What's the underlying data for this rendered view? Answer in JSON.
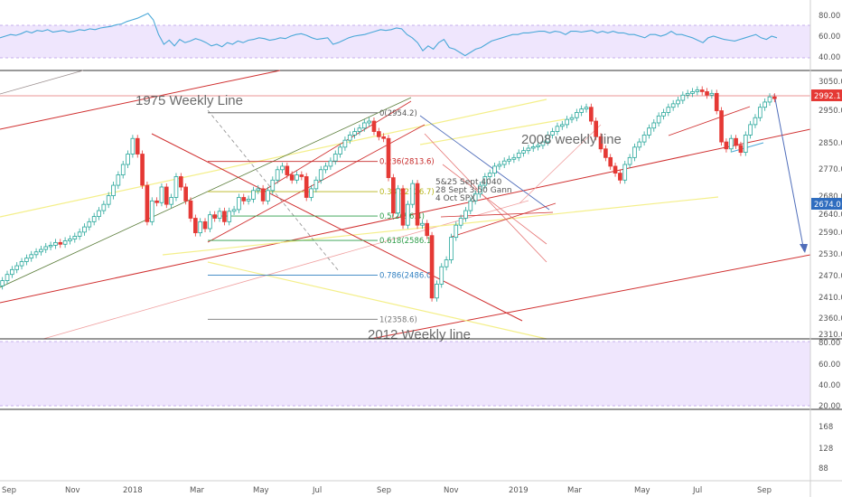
{
  "chart_data": {
    "type": "candlestick",
    "colors": {
      "up": "#26a69a",
      "down": "#e53935",
      "rsi_line": "#4aa8d8",
      "rsi_band": "#e8dcfb"
    },
    "x_axis": {
      "labels": [
        "Sep",
        "Nov",
        "2018",
        "Mar",
        "May",
        "Jul",
        "Sep",
        "Nov",
        "2019",
        "Mar",
        "May",
        "Jul",
        "Sep"
      ]
    },
    "price_axis": {
      "labels": [
        "3050.0",
        "2950.0",
        "2850.0",
        "2770.0",
        "2680.0",
        "2640.0",
        "2590.0",
        "2530.0",
        "2470.0",
        "2410.0",
        "2360.0",
        "2310.0"
      ],
      "range": [
        2310,
        3050
      ]
    },
    "rsi_top_axis": {
      "labels": [
        "80.00",
        "60.00",
        "40.00"
      ],
      "range": [
        20,
        100
      ],
      "band": [
        30,
        70
      ]
    },
    "rsi_bottom_axis": {
      "labels": [
        "80.00",
        "60.00",
        "40.00",
        "20.00"
      ]
    },
    "volume_axis": {
      "labels": [
        "168",
        "128",
        "88"
      ]
    },
    "current_price": "2992.1",
    "marker_price": "2674.0",
    "candles": [
      [
        2455,
        2470
      ],
      [
        2470,
        2488
      ],
      [
        2488,
        2502
      ],
      [
        2502,
        2513
      ],
      [
        2513,
        2525
      ],
      [
        2525,
        2535
      ],
      [
        2535,
        2545
      ],
      [
        2545,
        2553
      ],
      [
        2553,
        2560
      ],
      [
        2560,
        2568
      ],
      [
        2568,
        2572
      ],
      [
        2572,
        2580
      ],
      [
        2580,
        2575
      ],
      [
        2575,
        2585
      ],
      [
        2585,
        2590
      ],
      [
        2590,
        2598
      ],
      [
        2598,
        2610
      ],
      [
        2610,
        2625
      ],
      [
        2625,
        2640
      ],
      [
        2640,
        2655
      ],
      [
        2655,
        2672
      ],
      [
        2672,
        2690
      ],
      [
        2690,
        2715
      ],
      [
        2715,
        2745
      ],
      [
        2745,
        2775
      ],
      [
        2775,
        2805
      ],
      [
        2805,
        2835
      ],
      [
        2835,
        2880
      ],
      [
        2880,
        2835
      ],
      [
        2835,
        2745
      ],
      [
        2745,
        2640
      ],
      [
        2640,
        2700
      ],
      [
        2700,
        2695
      ],
      [
        2695,
        2740
      ],
      [
        2740,
        2690
      ],
      [
        2690,
        2710
      ],
      [
        2710,
        2770
      ],
      [
        2770,
        2740
      ],
      [
        2740,
        2700
      ],
      [
        2700,
        2650
      ],
      [
        2650,
        2608
      ],
      [
        2608,
        2640
      ],
      [
        2640,
        2620
      ],
      [
        2620,
        2660
      ],
      [
        2660,
        2650
      ],
      [
        2650,
        2670
      ],
      [
        2670,
        2640
      ],
      [
        2640,
        2670
      ],
      [
        2670,
        2675
      ],
      [
        2675,
        2710
      ],
      [
        2710,
        2700
      ],
      [
        2700,
        2705
      ],
      [
        2705,
        2730
      ],
      [
        2730,
        2735
      ],
      [
        2735,
        2700
      ],
      [
        2700,
        2730
      ],
      [
        2730,
        2760
      ],
      [
        2760,
        2790
      ],
      [
        2790,
        2800
      ],
      [
        2800,
        2775
      ],
      [
        2775,
        2760
      ],
      [
        2760,
        2775
      ],
      [
        2775,
        2770
      ],
      [
        2770,
        2710
      ],
      [
        2710,
        2735
      ],
      [
        2735,
        2760
      ],
      [
        2760,
        2790
      ],
      [
        2790,
        2800
      ],
      [
        2800,
        2815
      ],
      [
        2815,
        2835
      ],
      [
        2835,
        2855
      ],
      [
        2855,
        2875
      ],
      [
        2875,
        2890
      ],
      [
        2890,
        2900
      ],
      [
        2900,
        2910
      ],
      [
        2910,
        2925
      ],
      [
        2925,
        2930
      ],
      [
        2930,
        2900
      ],
      [
        2900,
        2885
      ],
      [
        2885,
        2880
      ],
      [
        2880,
        2767
      ],
      [
        2767,
        2665
      ],
      [
        2665,
        2735
      ],
      [
        2735,
        2630
      ],
      [
        2630,
        2690
      ],
      [
        2690,
        2750
      ],
      [
        2750,
        2630
      ],
      [
        2630,
        2635
      ],
      [
        2635,
        2600
      ],
      [
        2600,
        2420
      ],
      [
        2420,
        2460
      ],
      [
        2460,
        2510
      ],
      [
        2510,
        2530
      ],
      [
        2530,
        2595
      ],
      [
        2595,
        2630
      ],
      [
        2630,
        2650
      ],
      [
        2650,
        2672
      ],
      [
        2672,
        2700
      ],
      [
        2700,
        2720
      ],
      [
        2720,
        2745
      ],
      [
        2745,
        2770
      ],
      [
        2770,
        2780
      ],
      [
        2780,
        2800
      ],
      [
        2800,
        2805
      ],
      [
        2805,
        2815
      ],
      [
        2815,
        2820
      ],
      [
        2820,
        2825
      ],
      [
        2825,
        2838
      ],
      [
        2838,
        2845
      ],
      [
        2845,
        2852
      ],
      [
        2852,
        2856
      ],
      [
        2856,
        2860
      ],
      [
        2860,
        2870
      ],
      [
        2870,
        2890
      ],
      [
        2890,
        2900
      ],
      [
        2900,
        2915
      ],
      [
        2915,
        2920
      ],
      [
        2920,
        2935
      ],
      [
        2935,
        2940
      ],
      [
        2940,
        2955
      ],
      [
        2955,
        2965
      ],
      [
        2965,
        2970
      ],
      [
        2970,
        2930
      ],
      [
        2930,
        2885
      ],
      [
        2885,
        2850
      ],
      [
        2850,
        2825
      ],
      [
        2825,
        2800
      ],
      [
        2800,
        2780
      ],
      [
        2780,
        2760
      ],
      [
        2760,
        2805
      ],
      [
        2805,
        2825
      ],
      [
        2825,
        2855
      ],
      [
        2855,
        2870
      ],
      [
        2870,
        2890
      ],
      [
        2890,
        2910
      ],
      [
        2910,
        2925
      ],
      [
        2925,
        2945
      ],
      [
        2945,
        2955
      ],
      [
        2955,
        2970
      ],
      [
        2970,
        2980
      ],
      [
        2980,
        2990
      ],
      [
        2990,
        3005
      ],
      [
        3005,
        3010
      ],
      [
        3010,
        3015
      ],
      [
        3015,
        3020
      ],
      [
        3020,
        3015
      ],
      [
        3015,
        3005
      ],
      [
        3005,
        3010
      ],
      [
        3010,
        2960
      ],
      [
        2960,
        2870
      ],
      [
        2870,
        2850
      ],
      [
        2850,
        2880
      ],
      [
        2880,
        2860
      ],
      [
        2860,
        2840
      ],
      [
        2840,
        2890
      ],
      [
        2890,
        2920
      ],
      [
        2920,
        2940
      ],
      [
        2940,
        2970
      ],
      [
        2970,
        2985
      ],
      [
        2985,
        3000
      ],
      [
        3000,
        2995
      ]
    ],
    "rsi_top_values": [
      58,
      60,
      62,
      61,
      63,
      66,
      64,
      67,
      66,
      68,
      65,
      66,
      67,
      65,
      66,
      68,
      67,
      69,
      68,
      70,
      71,
      72,
      74,
      75,
      78,
      80,
      82,
      85,
      88,
      80,
      62,
      50,
      55,
      48,
      56,
      52,
      54,
      57,
      55,
      52,
      48,
      50,
      47,
      52,
      50,
      54,
      52,
      55,
      56,
      58,
      57,
      55,
      56,
      58,
      57,
      60,
      62,
      63,
      61,
      58,
      56,
      57,
      58,
      50,
      52,
      55,
      58,
      60,
      61,
      62,
      64,
      66,
      68,
      67,
      68,
      70,
      69,
      62,
      58,
      52,
      42,
      48,
      44,
      52,
      56,
      46,
      44,
      40,
      36,
      40,
      44,
      46,
      50,
      54,
      56,
      58,
      60,
      62,
      62,
      64,
      64,
      65,
      66,
      66,
      64,
      66,
      65,
      62,
      66,
      66,
      65,
      66,
      67,
      64,
      66,
      64,
      66,
      64,
      64,
      62,
      62,
      60,
      58,
      62,
      62,
      60,
      62,
      66,
      62,
      62,
      60,
      58,
      55,
      52,
      58,
      60,
      58,
      56,
      55,
      54,
      56,
      58,
      60,
      62,
      58,
      56,
      60,
      58
    ],
    "annotations": {
      "line_1975": "1975 Weekly Line",
      "line_2008": "2008 weekly line",
      "line_2012": "2012 Weekly line",
      "notes": [
        "5&25 Sept 4040",
        "28 Sept 3:50 Gann",
        "4 Oct SPX"
      ]
    },
    "fib_levels": [
      {
        "label": "0(2954.2)",
        "ratio": 0,
        "value": 2954.2,
        "color": "#555555"
      },
      {
        "label": "0.236(2813.6)",
        "ratio": 0.236,
        "value": 2813.6,
        "color": "#c62828"
      },
      {
        "label": "0.382(2726.7)",
        "ratio": 0.382,
        "value": 2726.7,
        "color": "#b7b51a"
      },
      {
        "label": "0.5(2656.4)",
        "ratio": 0.5,
        "value": 2656.4,
        "color": "#2e9e4a"
      },
      {
        "label": "0.618(2586.1)",
        "ratio": 0.618,
        "value": 2586.1,
        "color": "#2e9e4a"
      },
      {
        "label": "0.786(2486.0)",
        "ratio": 0.786,
        "value": 2486.0,
        "color": "#2f7fc0"
      },
      {
        "label": "1(2358.6)",
        "ratio": 1,
        "value": 2358.6,
        "color": "#777777"
      }
    ]
  }
}
